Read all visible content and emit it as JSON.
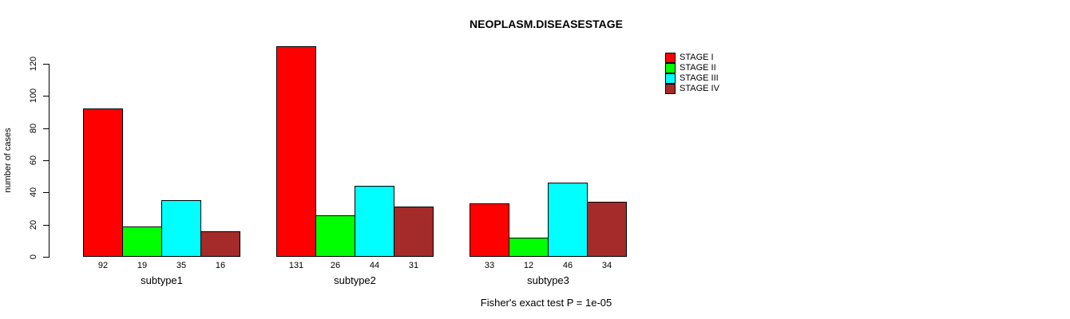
{
  "chart_data": {
    "type": "bar",
    "grouped": true,
    "title": "NEOPLASM.DISEASESTAGE",
    "xlabel": "",
    "ylabel": "number of cases",
    "ylim": [
      0,
      130
    ],
    "yticks": [
      0,
      20,
      40,
      60,
      80,
      100,
      120
    ],
    "grid": false,
    "legend_position": "top-right",
    "bar_border_color": "#000000",
    "bar_value_labels_shown": true,
    "categories": [
      "subtype1",
      "subtype2",
      "subtype3"
    ],
    "series": [
      {
        "name": "STAGE I",
        "color": "#FF0000",
        "values": [
          92,
          131,
          33
        ]
      },
      {
        "name": "STAGE II",
        "color": "#00FF00",
        "values": [
          19,
          26,
          12
        ]
      },
      {
        "name": "STAGE III",
        "color": "#00FFFF",
        "values": [
          35,
          44,
          46
        ]
      },
      {
        "name": "STAGE IV",
        "color": "#A52A2A",
        "values": [
          16,
          31,
          34
        ]
      }
    ],
    "annotation": "Fisher's exact test P = 1e-05"
  }
}
